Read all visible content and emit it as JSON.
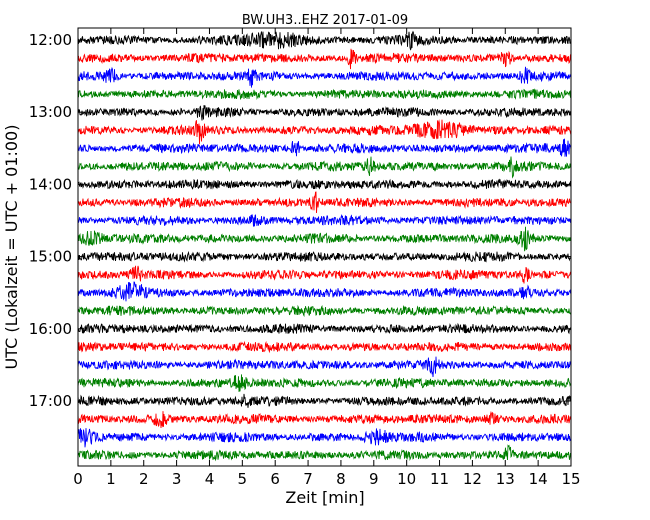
{
  "chart_data": {
    "type": "line",
    "title": "BW.UH3..EHZ 2017-01-09",
    "xlabel": "Zeit  [min]",
    "ylabel": "UTC (Lokalzeit = UTC + 01:00)",
    "xlim": [
      0,
      15
    ],
    "x_ticks": [
      "0",
      "1",
      "2",
      "3",
      "4",
      "5",
      "6",
      "7",
      "8",
      "9",
      "10",
      "11",
      "12",
      "13",
      "14",
      "15"
    ],
    "y_ticks": [
      "12:00",
      "13:00",
      "14:00",
      "15:00",
      "16:00",
      "17:00"
    ],
    "trace_start_times": [
      "12:00",
      "12:15",
      "12:30",
      "12:45",
      "13:00",
      "13:15",
      "13:30",
      "13:45",
      "14:00",
      "14:15",
      "14:30",
      "14:45",
      "15:00",
      "15:15",
      "15:30",
      "15:45",
      "16:00",
      "16:15",
      "16:30",
      "16:45",
      "17:00",
      "17:15",
      "17:30",
      "17:45"
    ],
    "trace_color_cycle": [
      "#000000",
      "#ff0000",
      "#0000ff",
      "#008000"
    ],
    "events": [
      {
        "trace": 0,
        "minute": 6.0,
        "amp": 1.4,
        "dur": 1.2
      },
      {
        "trace": 0,
        "minute": 10.1,
        "amp": 1.2,
        "dur": 0.2
      },
      {
        "trace": 1,
        "minute": 8.3,
        "amp": 1.7,
        "dur": 0.2
      },
      {
        "trace": 1,
        "minute": 13.0,
        "amp": 1.1,
        "dur": 0.3
      },
      {
        "trace": 2,
        "minute": 1.0,
        "amp": 1.1,
        "dur": 0.4
      },
      {
        "trace": 2,
        "minute": 5.3,
        "amp": 1.5,
        "dur": 0.2
      },
      {
        "trace": 2,
        "minute": 13.6,
        "amp": 1.5,
        "dur": 0.2
      },
      {
        "trace": 4,
        "minute": 3.8,
        "amp": 1.2,
        "dur": 0.2
      },
      {
        "trace": 5,
        "minute": 3.7,
        "amp": 1.8,
        "dur": 0.2
      },
      {
        "trace": 5,
        "minute": 11.0,
        "amp": 1.6,
        "dur": 1.2
      },
      {
        "trace": 6,
        "minute": 6.6,
        "amp": 1.8,
        "dur": 0.2
      },
      {
        "trace": 6,
        "minute": 14.8,
        "amp": 1.6,
        "dur": 0.2
      },
      {
        "trace": 7,
        "minute": 8.9,
        "amp": 1.6,
        "dur": 0.2
      },
      {
        "trace": 7,
        "minute": 13.2,
        "amp": 1.3,
        "dur": 0.2
      },
      {
        "trace": 9,
        "minute": 7.2,
        "amp": 2.3,
        "dur": 0.2
      },
      {
        "trace": 10,
        "minute": 5.4,
        "amp": 1.2,
        "dur": 0.2
      },
      {
        "trace": 11,
        "minute": 0.4,
        "amp": 1.2,
        "dur": 0.5
      },
      {
        "trace": 11,
        "minute": 13.6,
        "amp": 1.6,
        "dur": 0.3
      },
      {
        "trace": 13,
        "minute": 1.8,
        "amp": 1.2,
        "dur": 0.3
      },
      {
        "trace": 13,
        "minute": 13.6,
        "amp": 1.3,
        "dur": 0.2
      },
      {
        "trace": 14,
        "minute": 1.6,
        "amp": 1.5,
        "dur": 0.6
      },
      {
        "trace": 14,
        "minute": 13.6,
        "amp": 1.2,
        "dur": 0.2
      },
      {
        "trace": 18,
        "minute": 10.8,
        "amp": 1.4,
        "dur": 0.2
      },
      {
        "trace": 19,
        "minute": 4.9,
        "amp": 1.2,
        "dur": 0.3
      },
      {
        "trace": 20,
        "minute": 5.1,
        "amp": 1.3,
        "dur": 0.2
      },
      {
        "trace": 21,
        "minute": 2.5,
        "amp": 1.2,
        "dur": 0.3
      },
      {
        "trace": 21,
        "minute": 12.6,
        "amp": 1.3,
        "dur": 0.3
      },
      {
        "trace": 22,
        "minute": 0.2,
        "amp": 1.5,
        "dur": 0.4
      },
      {
        "trace": 22,
        "minute": 9.1,
        "amp": 1.2,
        "dur": 0.5
      },
      {
        "trace": 23,
        "minute": 13.1,
        "amp": 1.3,
        "dur": 0.2
      }
    ],
    "grid": false,
    "legend": "none"
  }
}
